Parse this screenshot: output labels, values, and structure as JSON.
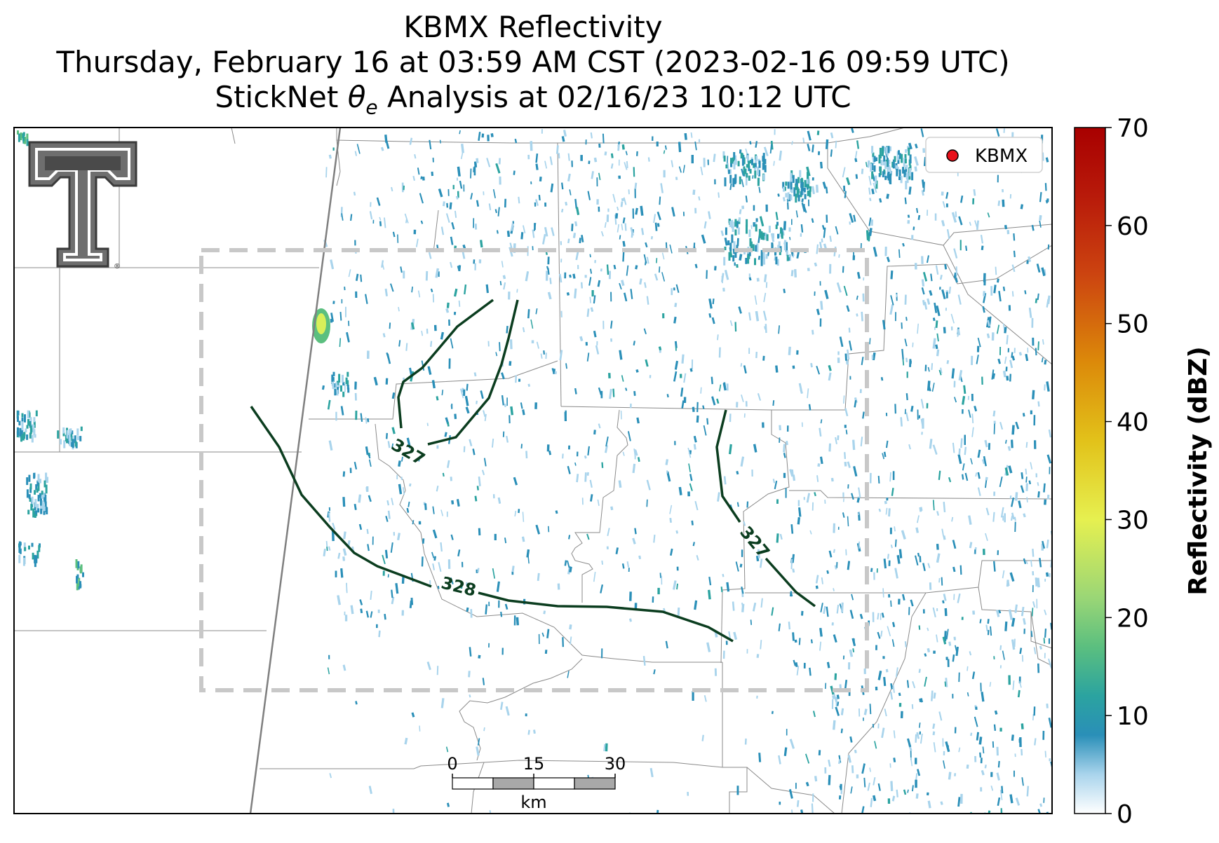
{
  "header": {
    "title_line1": "KBMX Reflectivity",
    "title_line2": "Thursday, February 16 at 03:59 AM CST (2023-02-16 09:59 UTC)",
    "title_line3_prefix": "StickNet ",
    "title_line3_symbol": "θ",
    "title_line3_subscript": "e",
    "title_line3_suffix": " Analysis at 02/16/23 10:12 UTC"
  },
  "legend": {
    "marker_color": "#e8101a",
    "label": "KBMX"
  },
  "logo": {
    "name": "Texas Tech University double-T logo",
    "registered_mark": "®"
  },
  "contours": [
    {
      "label": "327",
      "color": "#0b3d1f"
    },
    {
      "label": "328",
      "color": "#0b3d1f"
    },
    {
      "label": "327",
      "color": "#0b3d1f"
    }
  ],
  "scale_bar": {
    "ticks": [
      "0",
      "15",
      "30"
    ],
    "unit": "km"
  },
  "colorbar": {
    "label": "Reflectivity (dBZ)",
    "min": 0,
    "max": 70,
    "tick_labels": [
      "0",
      "10",
      "20",
      "30",
      "40",
      "50",
      "60",
      "70"
    ],
    "stops": [
      {
        "value": 0,
        "color": "#ffffff"
      },
      {
        "value": 4,
        "color": "#a9d4ec"
      },
      {
        "value": 8,
        "color": "#2a8fb8"
      },
      {
        "value": 12,
        "color": "#2ba3a0"
      },
      {
        "value": 17,
        "color": "#5bbf7f"
      },
      {
        "value": 22,
        "color": "#9ad676"
      },
      {
        "value": 30,
        "color": "#e6f050"
      },
      {
        "value": 38,
        "color": "#e2c21a"
      },
      {
        "value": 46,
        "color": "#dc8a0a"
      },
      {
        "value": 55,
        "color": "#cc4410"
      },
      {
        "value": 63,
        "color": "#b81a0a"
      },
      {
        "value": 70,
        "color": "#a80000"
      }
    ]
  },
  "colors": {
    "county_lines": "#8a8a8a",
    "domain_box": "#c8c8c8",
    "state_line": "#7f7f7f",
    "echo_light": "#a9d4ec",
    "echo_main": "#2a8fb8",
    "echo_teal": "#2ba3a0",
    "echo_green": "#5bbf7f",
    "echo_yellow": "#d8ef5a"
  }
}
